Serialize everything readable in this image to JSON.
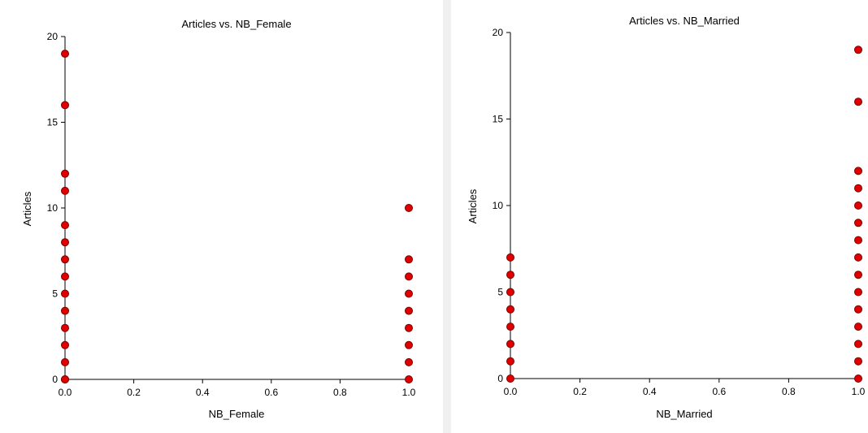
{
  "chart_data": [
    {
      "type": "scatter",
      "title": "Articles vs. NB_Female",
      "xlabel": "NB_Female",
      "ylabel": "Articles",
      "xlim": [
        0,
        1
      ],
      "ylim": [
        0,
        20
      ],
      "xticks": [
        "0.0",
        "0.2",
        "0.4",
        "0.6",
        "0.8",
        "1.0"
      ],
      "yticks": [
        "0",
        "5",
        "10",
        "15",
        "20"
      ],
      "grid": false,
      "point_color": "#e00000",
      "series": [
        {
          "x": [
            0,
            0,
            0,
            0,
            0,
            0,
            0,
            0,
            0,
            0,
            0,
            0,
            0,
            0,
            0,
            1,
            1,
            1,
            1,
            1,
            1,
            1,
            1,
            1
          ],
          "y": [
            0,
            1,
            2,
            3,
            4,
            5,
            6,
            7,
            8,
            9,
            11,
            12,
            16,
            19,
            0,
            0,
            1,
            2,
            3,
            4,
            5,
            6,
            7,
            10
          ]
        }
      ]
    },
    {
      "type": "scatter",
      "title": "Articles vs. NB_Married",
      "xlabel": "NB_Married",
      "ylabel": "Articles",
      "xlim": [
        0,
        1
      ],
      "ylim": [
        0,
        20
      ],
      "xticks": [
        "0.0",
        "0.2",
        "0.4",
        "0.6",
        "0.8",
        "1.0"
      ],
      "yticks": [
        "0",
        "5",
        "10",
        "15",
        "20"
      ],
      "grid": false,
      "point_color": "#e00000",
      "series": [
        {
          "x": [
            0,
            0,
            0,
            0,
            0,
            0,
            0,
            0,
            1,
            1,
            1,
            1,
            1,
            1,
            1,
            1,
            1,
            1,
            1,
            1,
            1,
            1,
            1
          ],
          "y": [
            0,
            1,
            2,
            3,
            4,
            5,
            6,
            7,
            0,
            1,
            2,
            3,
            4,
            5,
            6,
            7,
            8,
            9,
            10,
            11,
            12,
            16,
            19
          ]
        }
      ]
    }
  ]
}
